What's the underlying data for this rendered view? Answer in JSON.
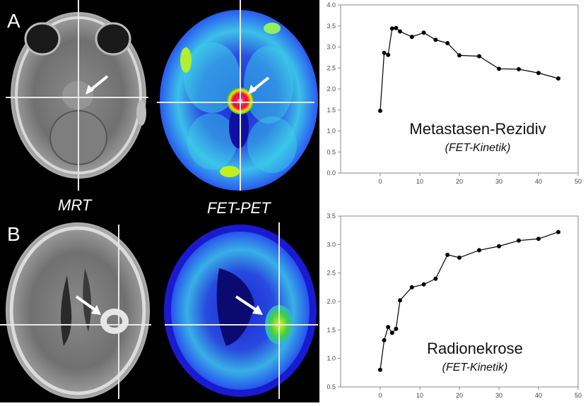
{
  "panels": {
    "a": {
      "letter": "A"
    },
    "b": {
      "letter": "B"
    },
    "modality_left": "MRT",
    "modality_right": "FET-PET"
  },
  "chart_data": [
    {
      "type": "line",
      "annotation_title": "Metastasen-Rezidiv",
      "annotation_sub": "(FET-Kinetik)",
      "xlim": [
        -10,
        50
      ],
      "ylim": [
        0,
        4.0
      ],
      "xticks": [
        0,
        10,
        20,
        30,
        40,
        50
      ],
      "xtick_labels": [
        "0",
        "10",
        "20",
        "30",
        "40",
        "50"
      ],
      "yticks": [
        0,
        0.5,
        1.0,
        1.5,
        2.0,
        2.5,
        3.0,
        3.5,
        4.0
      ],
      "ytick_labels": [
        "0.0",
        "0.5",
        "1.0",
        "1.5",
        "2.0",
        "2.5",
        "3.0",
        "3.5",
        "4.0"
      ],
      "grid": false,
      "series": [
        {
          "x": [
            0,
            1,
            2,
            3,
            4,
            5,
            8,
            11,
            14,
            17,
            20,
            25,
            30,
            35,
            40,
            45
          ],
          "y": [
            1.48,
            2.86,
            2.81,
            3.44,
            3.45,
            3.37,
            3.24,
            3.34,
            3.17,
            3.09,
            2.8,
            2.78,
            2.48,
            2.47,
            2.38,
            2.25
          ]
        }
      ]
    },
    {
      "type": "line",
      "annotation_title": "Radionekrose",
      "annotation_sub": "(FET-Kinetik)",
      "xlim": [
        -10,
        50
      ],
      "ylim": [
        0.5,
        3.5
      ],
      "xticks": [
        0,
        10,
        20,
        30,
        40,
        50
      ],
      "xtick_labels": [
        "0",
        "10",
        "20",
        "30",
        "40",
        "50"
      ],
      "yticks": [
        0.5,
        1.0,
        1.5,
        2.0,
        2.5,
        3.0,
        3.5
      ],
      "ytick_labels": [
        "0.5",
        "1.0",
        "1.5",
        "2.0",
        "2.5",
        "3.0",
        "3.5"
      ],
      "grid": false,
      "series": [
        {
          "x": [
            0,
            1,
            2,
            3,
            4,
            5,
            8,
            11,
            14,
            17,
            20,
            25,
            30,
            35,
            40,
            45
          ],
          "y": [
            0.8,
            1.32,
            1.55,
            1.45,
            1.52,
            2.02,
            2.25,
            2.3,
            2.4,
            2.82,
            2.77,
            2.9,
            2.97,
            3.07,
            3.1,
            3.22
          ]
        }
      ]
    }
  ]
}
